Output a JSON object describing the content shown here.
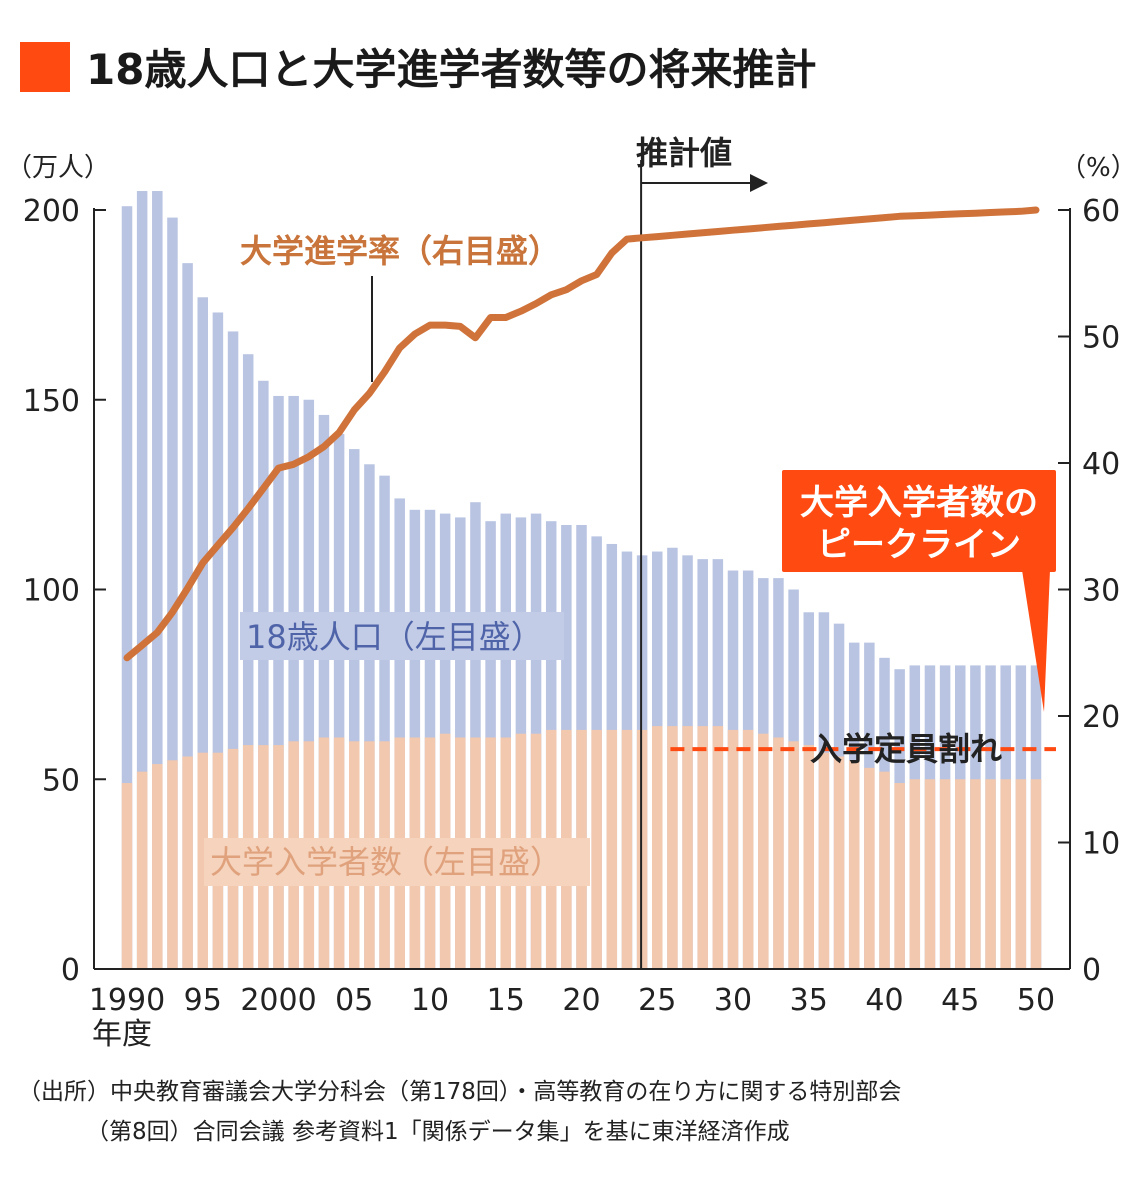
{
  "title": "18歳人口と大学進学者数等の将来推計",
  "colors": {
    "title_square": "#ff4a12",
    "population_bar": "#b9c4e2",
    "enrollment_bar": "#f2c8ae",
    "rate_line": "#d0733a",
    "peak_line": "#ff4a12",
    "callout": "#ff4a12"
  },
  "chart_data": {
    "type": "bar",
    "x_start": 1990,
    "x_end": 2050,
    "forecast_start": 2024,
    "xticks": [
      {
        "year": 1990,
        "label": "1990"
      },
      {
        "year": 1995,
        "label": "95"
      },
      {
        "year": 2000,
        "label": "2000"
      },
      {
        "year": 2005,
        "label": "05"
      },
      {
        "year": 2010,
        "label": "10"
      },
      {
        "year": 2015,
        "label": "15"
      },
      {
        "year": 2020,
        "label": "20"
      },
      {
        "year": 2025,
        "label": "25"
      },
      {
        "year": 2030,
        "label": "30"
      },
      {
        "year": 2035,
        "label": "35"
      },
      {
        "year": 2040,
        "label": "40"
      },
      {
        "year": 2045,
        "label": "45"
      },
      {
        "year": 2050,
        "label": "50"
      }
    ],
    "x_unit": "年度",
    "left_axis": {
      "unit": "（万人）",
      "ylim": [
        0,
        200
      ],
      "ticks": [
        "0",
        "50",
        "100",
        "150",
        "200"
      ]
    },
    "right_axis": {
      "unit": "（%）",
      "ylim": [
        0,
        60
      ],
      "ticks": [
        "0",
        "10",
        "20",
        "30",
        "40",
        "50",
        "60"
      ]
    },
    "series": [
      {
        "name": "18歳人口（左目盛）",
        "axis": "left",
        "values": [
          201,
          205,
          205,
          198,
          186,
          177,
          173,
          168,
          162,
          155,
          151,
          151,
          150,
          146,
          141,
          137,
          133,
          130,
          124,
          121,
          121,
          120,
          119,
          123,
          118,
          120,
          119,
          120,
          118,
          117,
          117,
          114,
          112,
          110,
          109,
          110,
          111,
          109,
          108,
          108,
          105,
          105,
          103,
          103,
          100,
          94,
          94,
          91,
          86,
          86,
          82,
          79,
          80,
          80,
          80,
          80,
          80,
          80,
          80,
          80,
          80
        ]
      },
      {
        "name": "大学入学者数（左目盛）",
        "axis": "left",
        "values": [
          49,
          52,
          54,
          55,
          56,
          57,
          57,
          58,
          59,
          59,
          59,
          60,
          60,
          61,
          61,
          60,
          60,
          60,
          61,
          61,
          61,
          62,
          61,
          61,
          61,
          61,
          62,
          62,
          63,
          63,
          63,
          63,
          63,
          63,
          63,
          64,
          64,
          64,
          64,
          64,
          63,
          63,
          62,
          61,
          60,
          59,
          57,
          56,
          55,
          53,
          52,
          49,
          50,
          50,
          50,
          50,
          50,
          50,
          50,
          50,
          50
        ]
      },
      {
        "name": "大学進学率（右目盛）",
        "axis": "right",
        "type": "line",
        "values": [
          24.6,
          25.6,
          26.6,
          28.2,
          30.1,
          32.1,
          33.5,
          34.9,
          36.4,
          38.0,
          39.6,
          39.9,
          40.5,
          41.3,
          42.4,
          44.2,
          45.5,
          47.2,
          49.1,
          50.2,
          50.9,
          50.9,
          50.8,
          49.9,
          51.5,
          51.5,
          52.0,
          52.6,
          53.3,
          53.7,
          54.4,
          54.9,
          56.6,
          57.7,
          57.8,
          57.9,
          58.0,
          58.1,
          58.2,
          58.3,
          58.4,
          58.5,
          58.6,
          58.7,
          58.8,
          58.9,
          59.0,
          59.1,
          59.2,
          59.3,
          59.4,
          59.5,
          59.55,
          59.6,
          59.65,
          59.7,
          59.75,
          59.8,
          59.85,
          59.9,
          60.0
        ]
      }
    ],
    "peak_line": {
      "year_from": 2026,
      "year_to": 2050,
      "value": 64
    },
    "annotations": {
      "forecast": "推計値",
      "peak_line_label": "入学定員割れ",
      "callout_line1": "大学入学者数の",
      "callout_line2": "ピークライン"
    },
    "grid": false,
    "legend": "none"
  },
  "source": {
    "line1": "（出所）中央教育審議会大学分科会（第178回）・高等教育の在り方に関する特別部会",
    "line2": "（第8回）合同会議 参考資料1「関係データ集」を基に東洋経済作成"
  }
}
